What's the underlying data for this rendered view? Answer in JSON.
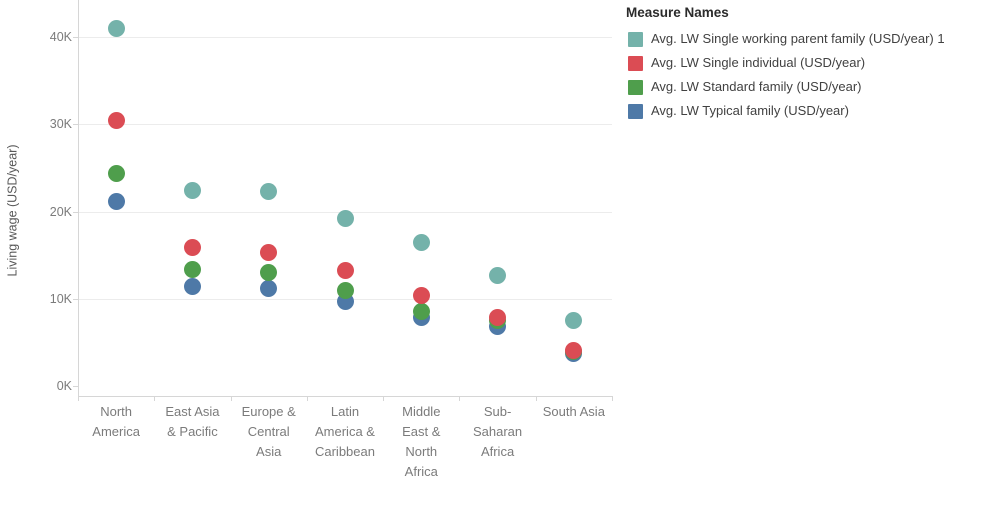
{
  "legend": {
    "title": "Measure Names",
    "items": [
      {
        "label": "Avg. LW Single working parent family (USD/year) 1",
        "color": "#74B2AA"
      },
      {
        "label": "Avg. LW Single individual (USD/year)",
        "color": "#DB4C54"
      },
      {
        "label": "Avg. LW Standard family (USD/year)",
        "color": "#4F9E4C"
      },
      {
        "label": "Avg. LW Typical family (USD/year)",
        "color": "#4E79A7"
      }
    ]
  },
  "chart_data": {
    "type": "scatter",
    "title": "",
    "xlabel": "",
    "ylabel": "Living wage (USD/year)",
    "ylim": [
      0,
      44000
    ],
    "yticks": [
      0,
      10000,
      20000,
      30000,
      40000
    ],
    "ytick_labels": [
      "0K",
      "10K",
      "20K",
      "30K",
      "40K"
    ],
    "grid": "horizontal gridlines at 10K steps, none at 0K",
    "legend_position": "top-right",
    "categories": [
      "North America",
      "East Asia & Pacific",
      "Europe & Central Asia",
      "Latin America & Caribbean",
      "Middle East & North Africa",
      "Sub-Saharan Africa",
      "South Asia"
    ],
    "category_label_lines": [
      [
        "North",
        "America"
      ],
      [
        "East Asia",
        "& Pacific"
      ],
      [
        "Europe &",
        "Central",
        "Asia"
      ],
      [
        "Latin",
        "America &",
        "Caribbean"
      ],
      [
        "Middle",
        "East &",
        "North",
        "Africa"
      ],
      [
        "Sub-",
        "Saharan",
        "Africa"
      ],
      [
        "South Asia"
      ]
    ],
    "series": [
      {
        "name": "Avg. LW Single working parent family (USD/year) 1",
        "color": "#74B2AA",
        "values": [
          41000,
          22400,
          22300,
          19200,
          16400,
          12700,
          7500
        ]
      },
      {
        "name": "Avg. LW Single individual (USD/year)",
        "color": "#DB4C54",
        "values": [
          30500,
          15900,
          15300,
          13200,
          10400,
          7900,
          4100
        ]
      },
      {
        "name": "Avg. LW Standard family (USD/year)",
        "color": "#4F9E4C",
        "values": [
          24400,
          13400,
          13000,
          11000,
          8500,
          7500,
          3900
        ]
      },
      {
        "name": "Avg. LW Typical family (USD/year)",
        "color": "#4E79A7",
        "values": [
          21200,
          11400,
          11200,
          9700,
          7900,
          6800,
          3700
        ]
      }
    ]
  }
}
